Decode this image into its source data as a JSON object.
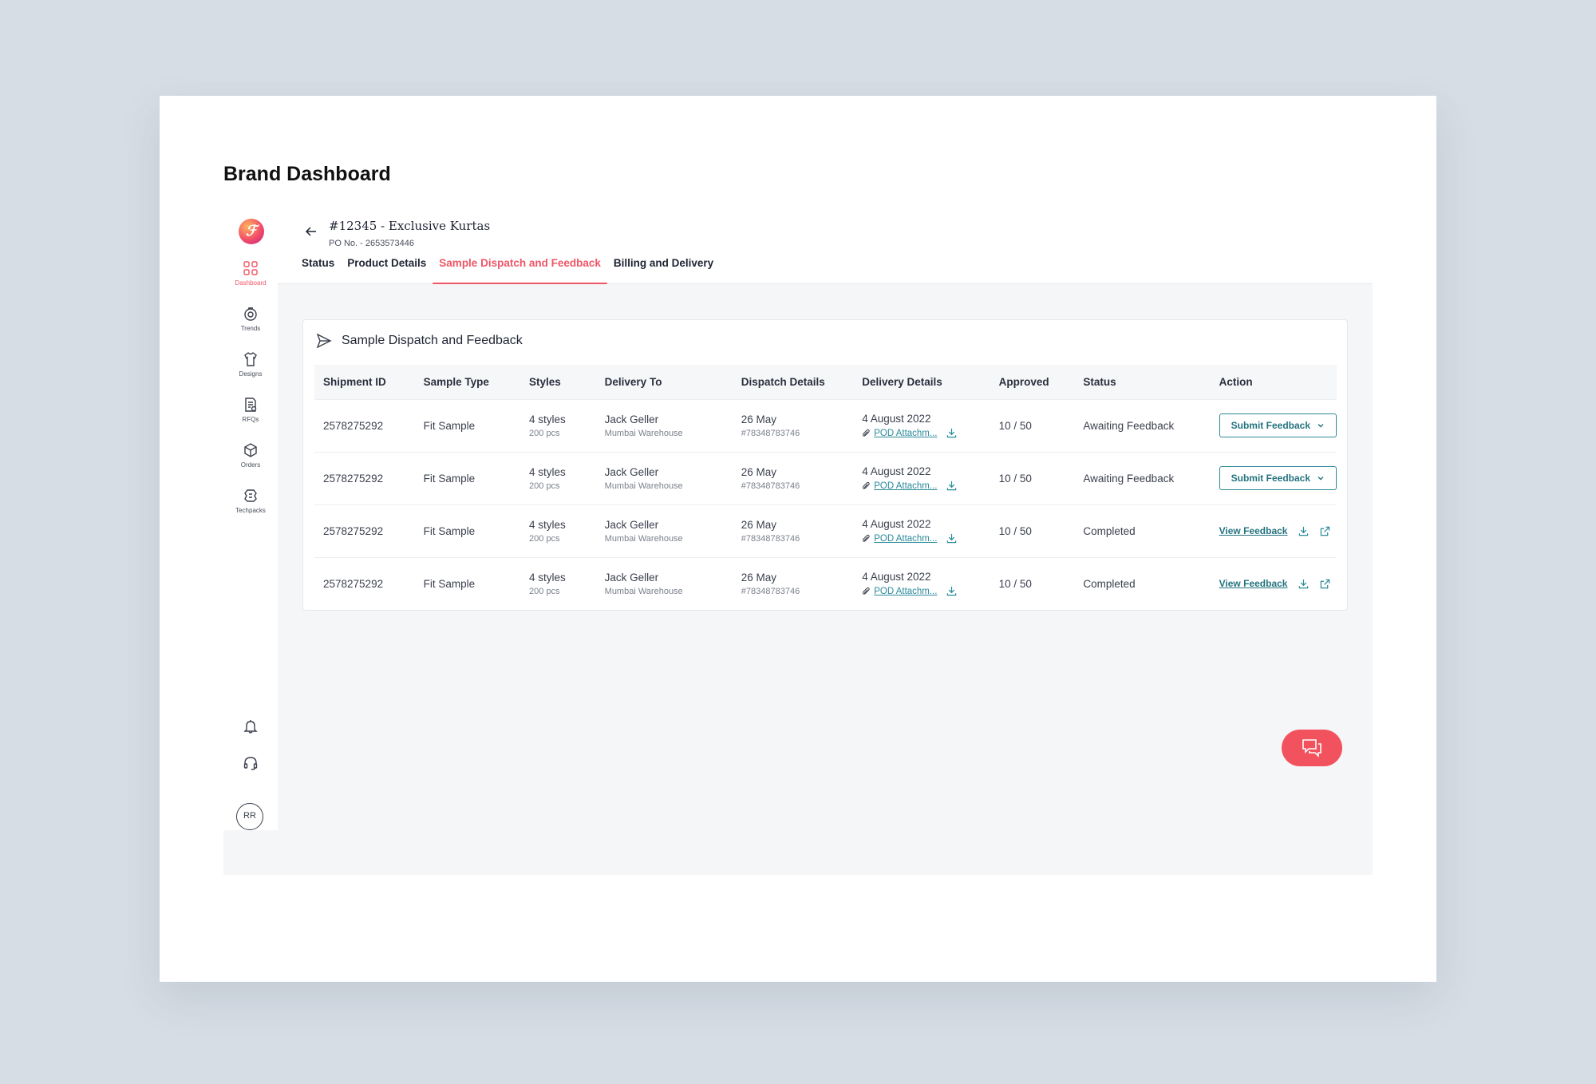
{
  "page": {
    "title": "Brand Dashboard"
  },
  "brand": {
    "logo_letter": "ℱ"
  },
  "sidebar": {
    "items": [
      {
        "label": "Dashboard",
        "icon": "grid-icon",
        "active": true
      },
      {
        "label": "Trends",
        "icon": "trends-icon",
        "active": false
      },
      {
        "label": "Designs",
        "icon": "shirt-icon",
        "active": false
      },
      {
        "label": "RFQs",
        "icon": "document-icon",
        "active": false
      },
      {
        "label": "Orders",
        "icon": "box-icon",
        "active": false
      },
      {
        "label": "Techpacks",
        "icon": "techpack-icon",
        "active": false
      }
    ],
    "avatar_initials": "RR"
  },
  "header": {
    "order_title": "#12345 - Exclusive Kurtas",
    "po_number": "PO No. - 2653573446"
  },
  "tabs": [
    {
      "label": "Status",
      "active": false
    },
    {
      "label": "Product Details",
      "active": false
    },
    {
      "label": "Sample Dispatch and Feedback",
      "active": true
    },
    {
      "label": "Billing and Delivery",
      "active": false
    }
  ],
  "panel": {
    "title": "Sample Dispatch and Feedback",
    "columns": [
      "Shipment ID",
      "Sample Type",
      "Styles",
      "Delivery To",
      "Dispatch Details",
      "Delivery Details",
      "Approved",
      "Status",
      "Action"
    ],
    "rows": [
      {
        "shipment_id": "2578275292",
        "sample_type": "Fit Sample",
        "styles": "4 styles",
        "pcs": "200 pcs",
        "delivery_to": "Jack Geller",
        "warehouse": "Mumbai Warehouse",
        "dispatch_date": "26 May",
        "dispatch_ref": "#78348783746",
        "delivery_date": "4 August 2022",
        "pod": "POD Attachm...",
        "approved": "10 / 50",
        "status": "Awaiting Feedback",
        "action": "Submit Feedback"
      },
      {
        "shipment_id": "2578275292",
        "sample_type": "Fit Sample",
        "styles": "4 styles",
        "pcs": "200 pcs",
        "delivery_to": "Jack Geller",
        "warehouse": "Mumbai Warehouse",
        "dispatch_date": "26 May",
        "dispatch_ref": "#78348783746",
        "delivery_date": "4 August 2022",
        "pod": "POD Attachm...",
        "approved": "10 / 50",
        "status": "Awaiting Feedback",
        "action": "Submit Feedback"
      },
      {
        "shipment_id": "2578275292",
        "sample_type": "Fit Sample",
        "styles": "4 styles",
        "pcs": "200 pcs",
        "delivery_to": "Jack Geller",
        "warehouse": "Mumbai Warehouse",
        "dispatch_date": "26 May",
        "dispatch_ref": "#78348783746",
        "delivery_date": "4 August 2022",
        "pod": "POD Attachm...",
        "approved": "10 / 50",
        "status": "Completed",
        "action": "View Feedback"
      },
      {
        "shipment_id": "2578275292",
        "sample_type": "Fit Sample",
        "styles": "4 styles",
        "pcs": "200 pcs",
        "delivery_to": "Jack Geller",
        "warehouse": "Mumbai Warehouse",
        "dispatch_date": "26 May",
        "dispatch_ref": "#78348783746",
        "delivery_date": "4 August 2022",
        "pod": "POD Attachm...",
        "approved": "10 / 50",
        "status": "Completed",
        "action": "View Feedback"
      }
    ]
  },
  "colors": {
    "accent": "#ef5667",
    "teal": "#2b8a9a",
    "fab": "#f1525e"
  }
}
